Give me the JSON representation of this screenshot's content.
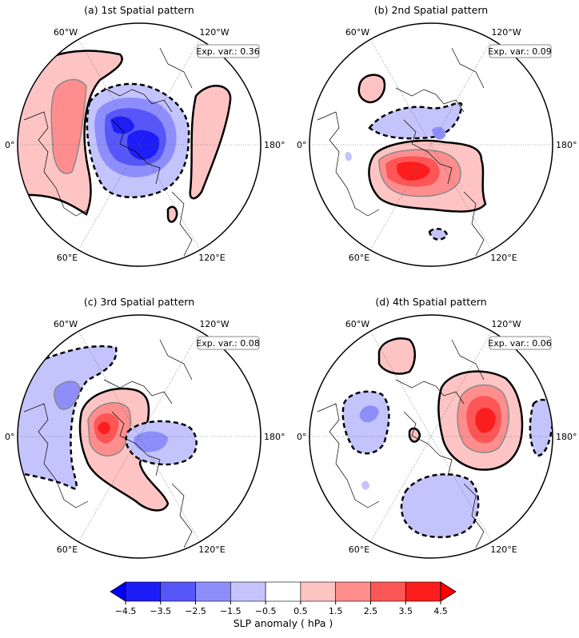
{
  "panels": [
    {
      "title": "(a) 1st Spatial pattern",
      "exp_var_label": "Exp. var.: 0.36",
      "lon_labels": {
        "upper_left": "60°W",
        "upper_right": "120°W",
        "left": "0°",
        "right": "180°",
        "lower_left": "60°E",
        "lower_right": "120°E"
      }
    },
    {
      "title": "(b) 2nd Spatial pattern",
      "exp_var_label": "Exp. var.: 0.09",
      "lon_labels": {
        "upper_left": "60°W",
        "upper_right": "120°W",
        "left": "0°",
        "right": "180°",
        "lower_left": "60°E",
        "lower_right": "120°E"
      }
    },
    {
      "title": "(c) 3rd Spatial pattern",
      "exp_var_label": "Exp. var.: 0.08",
      "lon_labels": {
        "upper_left": "60°W",
        "upper_right": "120°W",
        "left": "0°",
        "right": "180°",
        "lower_left": "60°E",
        "lower_right": "120°E"
      }
    },
    {
      "title": "(d) 4th Spatial pattern",
      "exp_var_label": "Exp. var.: 0.06",
      "lon_labels": {
        "upper_left": "60°W",
        "upper_right": "120°W",
        "left": "0°",
        "right": "180°",
        "lower_left": "60°E",
        "lower_right": "120°E"
      }
    }
  ],
  "colorbar": {
    "label": "SLP anomaly ( hPa )",
    "ticks": [
      "−4.5",
      "−3.5",
      "−2.5",
      "−1.5",
      "−0.5",
      "0.5",
      "1.5",
      "2.5",
      "3.5",
      "4.5"
    ],
    "colors": [
      "#1d1df7",
      "#5656f9",
      "#8e8efb",
      "#c4c4fd",
      "#ffffff",
      "#fec4c4",
      "#fe8e8e",
      "#fd5656",
      "#fc1d1d"
    ],
    "extend_min_color": "#0000ff",
    "extend_max_color": "#ff0000"
  },
  "colors": {
    "neg1": "#c4c4fd",
    "neg2": "#8e8efb",
    "neg3": "#5656f9",
    "neg4": "#1d1df7",
    "pos1": "#fec4c4",
    "pos2": "#fe8e8e",
    "pos3": "#fd5656",
    "pos4": "#fc1d1d"
  }
}
